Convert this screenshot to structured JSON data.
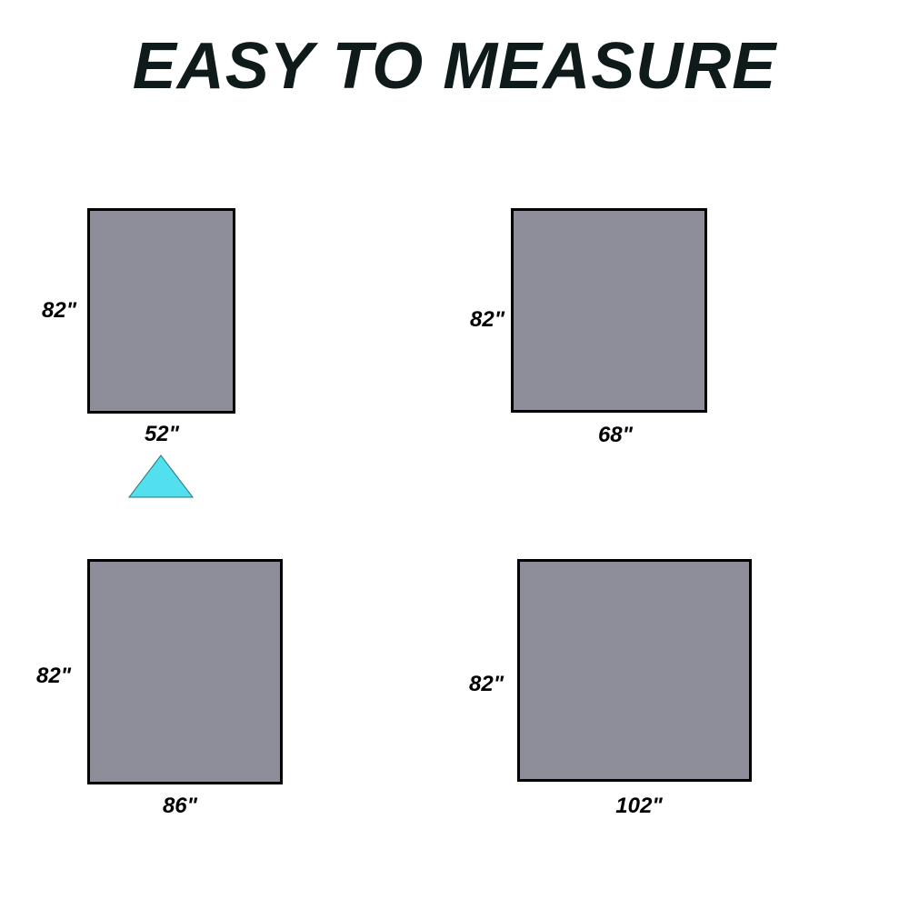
{
  "title": "EASY TO MEASURE",
  "panel_color": "#8e8e9a",
  "marker_color": "#52e0ee",
  "panels": [
    {
      "height_label": "82\"",
      "width_label": "52\""
    },
    {
      "height_label": "82\"",
      "width_label": "68\""
    },
    {
      "height_label": "82\"",
      "width_label": "86\""
    },
    {
      "height_label": "82\"",
      "width_label": "102\""
    }
  ],
  "marker_icon": "triangle-up-icon"
}
